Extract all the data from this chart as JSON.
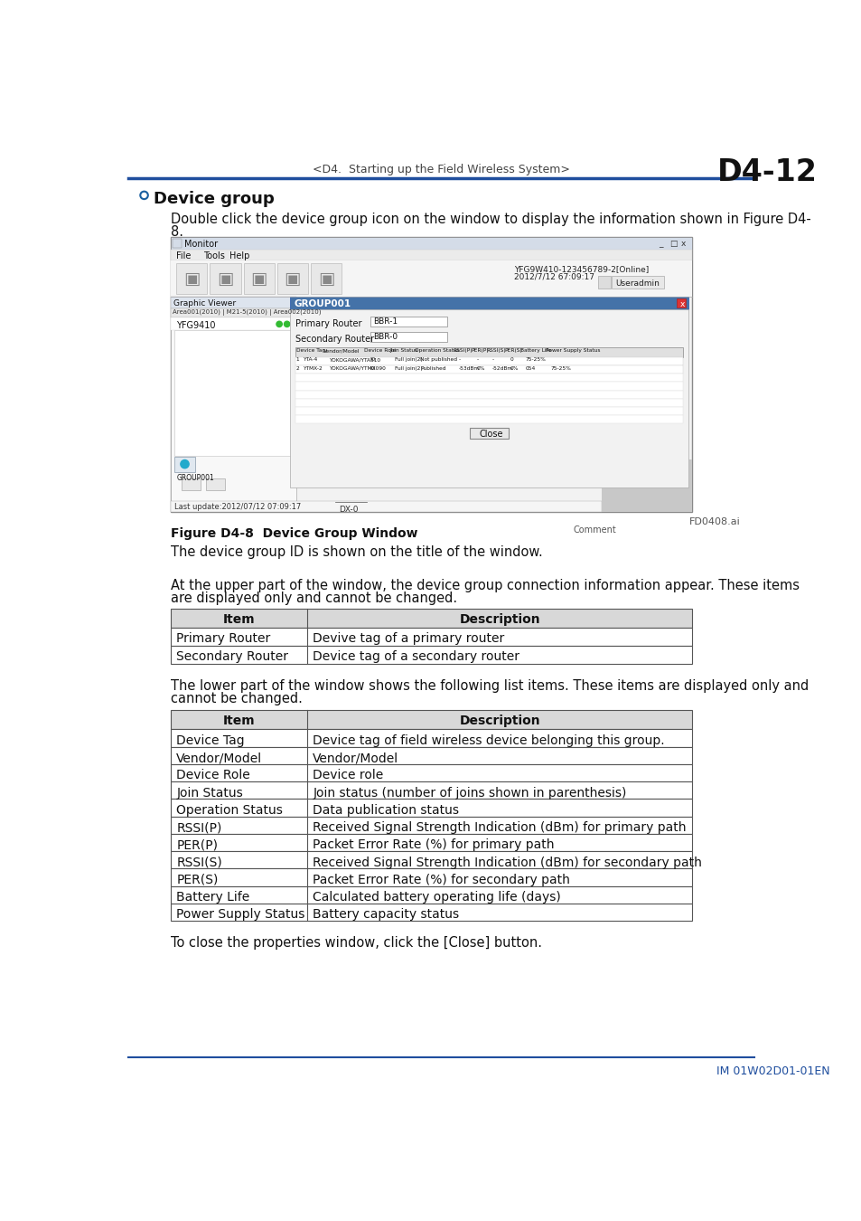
{
  "page_num": "D4-12",
  "header_center": "<D4.  Starting up the Field Wireless System>",
  "header_right": "D4-12",
  "section_title": "Device group",
  "blue_line_color": "#1f4e9e",
  "section_circle_color": "#1a5fa0",
  "para1_line1": "Double click the device group icon on the window to display the information shown in Figure D4-",
  "para1_line2": "8.",
  "figure_caption": "Figure D4-8  Device Group Window",
  "figure_label": "FD0408.ai",
  "para2": "The device group ID is shown on the title of the window.",
  "para3_line1": "At the upper part of the window, the device group connection information appear. These items",
  "para3_line2": "are displayed only and cannot be changed.",
  "table1_header": [
    "Item",
    "Description"
  ],
  "table1_rows": [
    [
      "Primary Router",
      "Devive tag of a primary router"
    ],
    [
      "Secondary Router",
      "Device tag of a secondary router"
    ]
  ],
  "para4_line1": "The lower part of the window shows the following list items. These items are displayed only and",
  "para4_line2": "cannot be changed.",
  "table2_header": [
    "Item",
    "Description"
  ],
  "table2_rows": [
    [
      "Device Tag",
      "Device tag of field wireless device belonging this group."
    ],
    [
      "Vendor/Model",
      "Vendor/Model"
    ],
    [
      "Device Role",
      "Device role"
    ],
    [
      "Join Status",
      "Join status (number of joins shown in parenthesis)"
    ],
    [
      "Operation Status",
      "Data publication status"
    ],
    [
      "RSSI(P)",
      "Received Signal Strength Indication (dBm) for primary path"
    ],
    [
      "PER(P)",
      "Packet Error Rate (%) for primary path"
    ],
    [
      "RSSI(S)",
      "Received Signal Strength Indication (dBm) for secondary path"
    ],
    [
      "PER(S)",
      "Packet Error Rate (%) for secondary path"
    ],
    [
      "Battery Life",
      "Calculated battery operating life (days)"
    ],
    [
      "Power Supply Status",
      "Battery capacity status"
    ]
  ],
  "para5": "To close the properties window, click the [Close] button.",
  "footer_text": "IM 01W02D01-01EN",
  "footer_color": "#1f4e9e",
  "table_border_color": "#555555",
  "table_header_bg": "#d8d8d8"
}
